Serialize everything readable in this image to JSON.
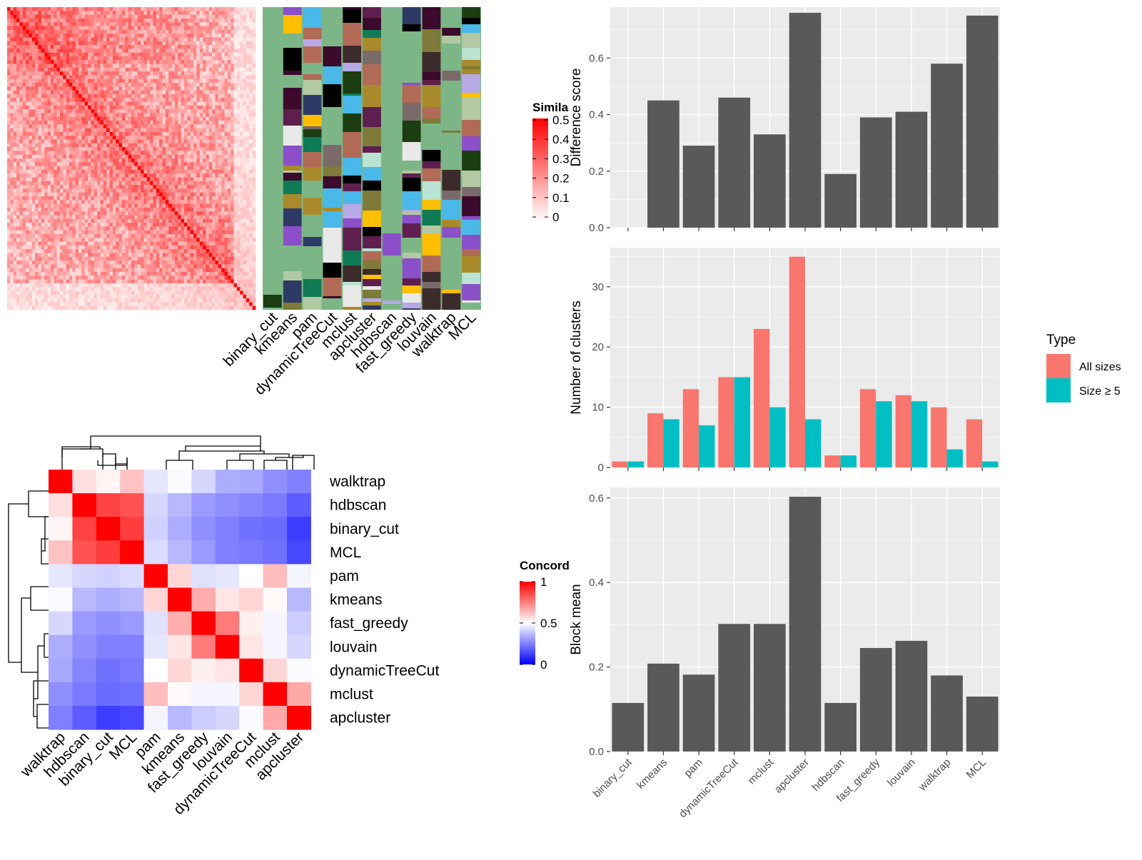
{
  "methods_order": [
    "binary_cut",
    "kmeans",
    "pam",
    "dynamicTreeCut",
    "mclust",
    "apcluster",
    "hdbscan",
    "fast_greedy",
    "louvain",
    "walktrap",
    "MCL"
  ],
  "similarity_heatmap": {
    "legend_title": "Simila",
    "legend_ticks": [
      "0.5",
      "0.4",
      "0.3",
      "0.2",
      "0.1",
      "0"
    ],
    "column_labels": [
      "binary_cut",
      "kmeans",
      "pam",
      "dynamicTreeCut",
      "mclust",
      "apcluster",
      "hdbscan",
      "fast_greedy",
      "louvain",
      "walktrap",
      "MCL"
    ],
    "colors": {
      "low": "#ffffff",
      "high": "#ff0000",
      "annotation_bg": "#7cb686"
    }
  },
  "concordance_heatmap": {
    "legend_title": "Concord",
    "legend_ticks": [
      "1",
      "0.5",
      "0"
    ],
    "row_labels": [
      "walktrap",
      "hdbscan",
      "binary_cut",
      "MCL",
      "pam",
      "kmeans",
      "fast_greedy",
      "louvain",
      "dynamicTreeCut",
      "mclust",
      "apcluster"
    ],
    "col_labels": [
      "walktrap",
      "hdbscan",
      "binary_cut",
      "MCL",
      "pam",
      "kmeans",
      "fast_greedy",
      "louvain",
      "dynamicTreeCut",
      "mclust",
      "apcluster"
    ],
    "colors": {
      "low": "#0000ff",
      "mid": "#ffffff",
      "high": "#ff0000"
    }
  },
  "chart_data": [
    {
      "type": "bar",
      "categories": [
        "binary_cut",
        "kmeans",
        "pam",
        "dynamicTreeCut",
        "mclust",
        "apcluster",
        "hdbscan",
        "fast_greedy",
        "louvain",
        "walktrap",
        "MCL"
      ],
      "values": [
        0.0,
        0.45,
        0.29,
        0.46,
        0.33,
        0.76,
        0.19,
        0.39,
        0.41,
        0.58,
        0.75
      ],
      "ylabel": "Difference score",
      "xlabel": "",
      "ylim": [
        0,
        0.78
      ],
      "yticks": [
        0.0,
        0.2,
        0.4,
        0.6
      ],
      "ytick_labels": [
        "0.0",
        "0.2",
        "0.4",
        "0.6"
      ],
      "grid": true,
      "color": "#595959"
    },
    {
      "type": "bar",
      "categories": [
        "binary_cut",
        "kmeans",
        "pam",
        "dynamicTreeCut",
        "mclust",
        "apcluster",
        "hdbscan",
        "fast_greedy",
        "louvain",
        "walktrap",
        "MCL"
      ],
      "series": [
        {
          "name": "All sizes",
          "values": [
            1,
            9,
            13,
            15,
            23,
            35,
            2,
            13,
            12,
            10,
            8
          ],
          "color": "#f8766d"
        },
        {
          "name": "Size ≥ 5",
          "values": [
            1,
            8,
            7,
            15,
            10,
            8,
            2,
            11,
            11,
            3,
            1
          ],
          "color": "#00bfc4"
        }
      ],
      "ylabel": "Number of clusters",
      "xlabel": "",
      "ylim": [
        0,
        36.5
      ],
      "yticks": [
        0,
        10,
        20,
        30
      ],
      "ytick_labels": [
        "0",
        "10",
        "20",
        "30"
      ],
      "grid": true,
      "legend_title": "Type",
      "legend_position": "right"
    },
    {
      "type": "bar",
      "categories": [
        "binary_cut",
        "kmeans",
        "pam",
        "dynamicTreeCut",
        "mclust",
        "apcluster",
        "hdbscan",
        "fast_greedy",
        "louvain",
        "walktrap",
        "MCL"
      ],
      "values": [
        0.115,
        0.208,
        0.182,
        0.302,
        0.302,
        0.603,
        0.115,
        0.245,
        0.262,
        0.18,
        0.13
      ],
      "ylabel": "Block mean",
      "xlabel": "",
      "ylim": [
        0,
        0.625
      ],
      "yticks": [
        0.0,
        0.2,
        0.4,
        0.6
      ],
      "ytick_labels": [
        "0.0",
        "0.2",
        "0.4",
        "0.6"
      ],
      "grid": true,
      "color": "#595959"
    }
  ]
}
